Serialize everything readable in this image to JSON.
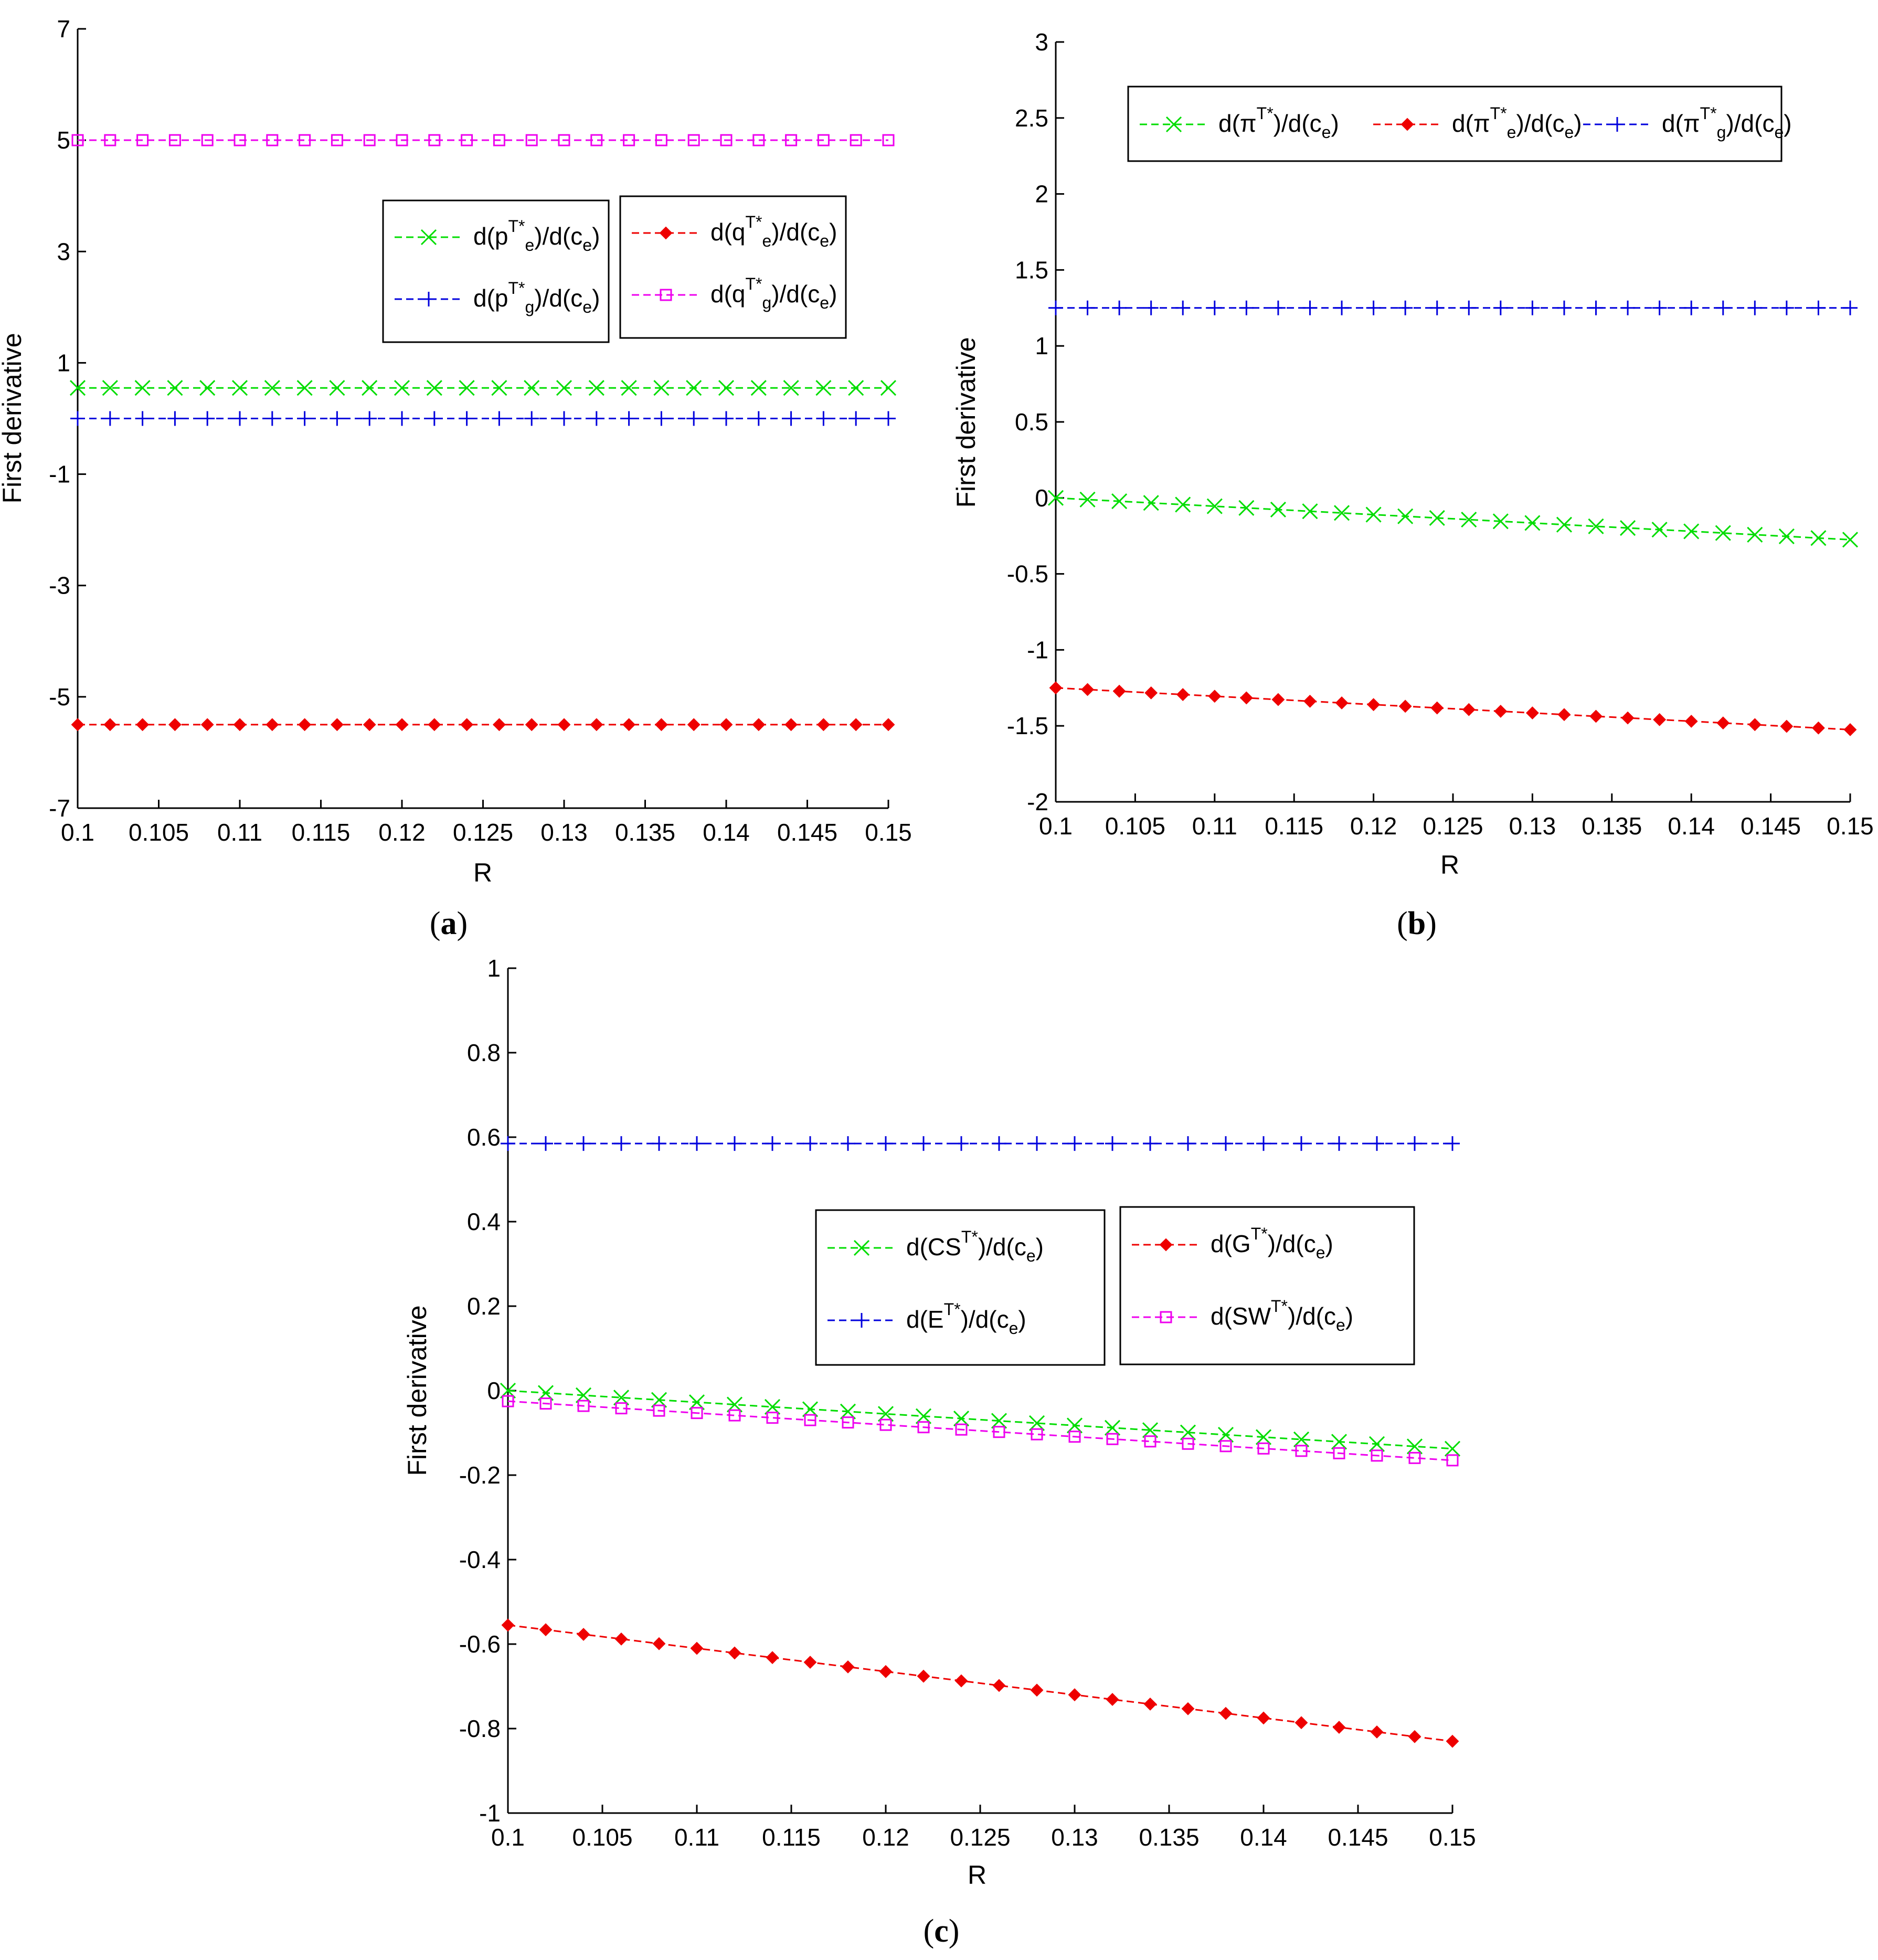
{
  "chart_data": [
    {
      "id": "a",
      "type": "line",
      "caption": "a",
      "xlabel": "R",
      "ylabel": "First derivative",
      "xlim": [
        0.1,
        0.15
      ],
      "ylim": [
        -7,
        7
      ],
      "xticks": [
        0.1,
        0.105,
        0.11,
        0.115,
        0.12,
        0.125,
        0.13,
        0.135,
        0.14,
        0.145,
        0.15
      ],
      "xtick_labels": [
        "0.1",
        "0.105",
        "0.11",
        "0.115",
        "0.12",
        "0.125",
        "0.13",
        "0.135",
        "0.14",
        "0.145",
        "0.15"
      ],
      "yticks": [
        -7,
        -5,
        -3,
        -1,
        1,
        3,
        5,
        7
      ],
      "ytick_labels": [
        "-7",
        "-5",
        "-3",
        "-1",
        "1",
        "3",
        "5",
        "7"
      ],
      "x": [
        0.1,
        0.102,
        0.104,
        0.106,
        0.108,
        0.11,
        0.112,
        0.114,
        0.116,
        0.118,
        0.12,
        0.122,
        0.124,
        0.126,
        0.128,
        0.13,
        0.132,
        0.134,
        0.136,
        0.138,
        0.14,
        0.142,
        0.144,
        0.146,
        0.148,
        0.15
      ],
      "series": [
        {
          "key": "pe",
          "color": "#00dd00",
          "marker": "x",
          "legend": {
            "pre": "d(p",
            "sub": "e",
            "sup": "T*",
            "post": ")/d(c",
            "sub2": "e",
            "end": ")"
          },
          "values": [
            0.55,
            0.55,
            0.55,
            0.55,
            0.55,
            0.55,
            0.55,
            0.55,
            0.55,
            0.55,
            0.55,
            0.55,
            0.55,
            0.55,
            0.55,
            0.55,
            0.55,
            0.55,
            0.55,
            0.55,
            0.55,
            0.55,
            0.55,
            0.55,
            0.55,
            0.55
          ]
        },
        {
          "key": "pg",
          "color": "#0000dd",
          "marker": "plus",
          "legend": {
            "pre": "d(p",
            "sub": "g",
            "sup": "T*",
            "post": ")/d(c",
            "sub2": "e",
            "end": ")"
          },
          "values": [
            0.0,
            0.0,
            0.0,
            0.0,
            0.0,
            0.0,
            0.0,
            0.0,
            0.0,
            0.0,
            0.0,
            0.0,
            0.0,
            0.0,
            0.0,
            0.0,
            0.0,
            0.0,
            0.0,
            0.0,
            0.0,
            0.0,
            0.0,
            0.0,
            0.0,
            0.0
          ]
        },
        {
          "key": "qe",
          "color": "#ee0000",
          "marker": "diamond",
          "legend": {
            "pre": "d(q",
            "sub": "e",
            "sup": "T*",
            "post": ")/d(c",
            "sub2": "e",
            "end": ")"
          },
          "values": [
            -5.5,
            -5.5,
            -5.5,
            -5.5,
            -5.5,
            -5.5,
            -5.5,
            -5.5,
            -5.5,
            -5.5,
            -5.5,
            -5.5,
            -5.5,
            -5.5,
            -5.5,
            -5.5,
            -5.5,
            -5.5,
            -5.5,
            -5.5,
            -5.5,
            -5.5,
            -5.5,
            -5.5,
            -5.5,
            -5.5
          ]
        },
        {
          "key": "qg",
          "color": "#ee00ee",
          "marker": "square",
          "legend": {
            "pre": "d(q",
            "sub": "g",
            "sup": "T*",
            "post": ")/d(c",
            "sub2": "e",
            "end": ")"
          },
          "values": [
            5.0,
            5.0,
            5.0,
            5.0,
            5.0,
            5.0,
            5.0,
            5.0,
            5.0,
            5.0,
            5.0,
            5.0,
            5.0,
            5.0,
            5.0,
            5.0,
            5.0,
            5.0,
            5.0,
            5.0,
            5.0,
            5.0,
            5.0,
            5.0,
            5.0,
            5.0
          ]
        }
      ],
      "legends": [
        {
          "placement": "upper-center",
          "entries": [
            "pe",
            "pg"
          ]
        },
        {
          "placement": "upper-right",
          "entries": [
            "qe",
            "qg"
          ]
        }
      ]
    },
    {
      "id": "b",
      "type": "line",
      "caption": "b",
      "xlabel": "R",
      "ylabel": "First derivative",
      "xlim": [
        0.1,
        0.15
      ],
      "ylim": [
        -2,
        3
      ],
      "xticks": [
        0.1,
        0.105,
        0.11,
        0.115,
        0.12,
        0.125,
        0.13,
        0.135,
        0.14,
        0.145,
        0.15
      ],
      "xtick_labels": [
        "0.1",
        "0.105",
        "0.11",
        "0.115",
        "0.12",
        "0.125",
        "0.13",
        "0.135",
        "0.14",
        "0.145",
        "0.15"
      ],
      "yticks": [
        -2,
        -1.5,
        -1,
        -0.5,
        0,
        0.5,
        1,
        1.5,
        2,
        2.5,
        3
      ],
      "ytick_labels": [
        "-2",
        "-1.5",
        "-1",
        "-0.5",
        "0",
        "0.5",
        "1",
        "1.5",
        "2",
        "2.5",
        "3"
      ],
      "x": [
        0.1,
        0.102,
        0.104,
        0.106,
        0.108,
        0.11,
        0.112,
        0.114,
        0.116,
        0.118,
        0.12,
        0.122,
        0.124,
        0.126,
        0.128,
        0.13,
        0.132,
        0.134,
        0.136,
        0.138,
        0.14,
        0.142,
        0.144,
        0.146,
        0.148,
        0.15
      ],
      "series": [
        {
          "key": "pi",
          "color": "#00dd00",
          "marker": "x",
          "legend": {
            "pre": "d(π",
            "sub": "",
            "sup": "T*",
            "post": ")/d(c",
            "sub2": "e",
            "end": ")"
          },
          "values": [
            0.0,
            -0.011,
            -0.022,
            -0.033,
            -0.044,
            -0.055,
            -0.066,
            -0.077,
            -0.088,
            -0.099,
            -0.11,
            -0.121,
            -0.132,
            -0.143,
            -0.154,
            -0.165,
            -0.176,
            -0.187,
            -0.198,
            -0.209,
            -0.22,
            -0.231,
            -0.242,
            -0.253,
            -0.264,
            -0.275
          ]
        },
        {
          "key": "pie",
          "color": "#ee0000",
          "marker": "diamond",
          "legend": {
            "pre": "d(π",
            "sub": "e",
            "sup": "T*",
            "post": ")/d(c",
            "sub2": "e",
            "end": ")"
          },
          "values": [
            -1.25,
            -1.261,
            -1.272,
            -1.283,
            -1.294,
            -1.305,
            -1.316,
            -1.327,
            -1.338,
            -1.349,
            -1.36,
            -1.371,
            -1.382,
            -1.393,
            -1.404,
            -1.415,
            -1.426,
            -1.437,
            -1.448,
            -1.459,
            -1.47,
            -1.481,
            -1.492,
            -1.503,
            -1.514,
            -1.525
          ]
        },
        {
          "key": "pig",
          "color": "#0000dd",
          "marker": "plus",
          "legend": {
            "pre": "d(π",
            "sub": "g",
            "sup": "T*",
            "post": ")/d(c",
            "sub2": "e",
            "end": ")"
          },
          "values": [
            1.25,
            1.25,
            1.25,
            1.25,
            1.25,
            1.25,
            1.25,
            1.25,
            1.25,
            1.25,
            1.25,
            1.25,
            1.25,
            1.25,
            1.25,
            1.25,
            1.25,
            1.25,
            1.25,
            1.25,
            1.25,
            1.25,
            1.25,
            1.25,
            1.25,
            1.25
          ]
        }
      ],
      "legends": [
        {
          "placement": "top",
          "entries": [
            "pi",
            "pie",
            "pig"
          ]
        }
      ]
    },
    {
      "id": "c",
      "type": "line",
      "caption": "c",
      "xlabel": "R",
      "ylabel": "First derivative",
      "xlim": [
        0.1,
        0.15
      ],
      "ylim": [
        -1,
        1
      ],
      "xticks": [
        0.1,
        0.105,
        0.11,
        0.115,
        0.12,
        0.125,
        0.13,
        0.135,
        0.14,
        0.145,
        0.15
      ],
      "xtick_labels": [
        "0.1",
        "0.105",
        "0.11",
        "0.115",
        "0.12",
        "0.125",
        "0.13",
        "0.135",
        "0.14",
        "0.145",
        "0.15"
      ],
      "yticks": [
        -1,
        -0.8,
        -0.6,
        -0.4,
        -0.2,
        0,
        0.2,
        0.4,
        0.6,
        0.8,
        1
      ],
      "ytick_labels": [
        "-1",
        "-0.8",
        "-0.6",
        "-0.4",
        "-0.2",
        "0",
        "0.2",
        "0.4",
        "0.6",
        "0.8",
        "1"
      ],
      "x": [
        0.1,
        0.102,
        0.104,
        0.106,
        0.108,
        0.11,
        0.112,
        0.114,
        0.116,
        0.118,
        0.12,
        0.122,
        0.124,
        0.126,
        0.128,
        0.13,
        0.132,
        0.134,
        0.136,
        0.138,
        0.14,
        0.142,
        0.144,
        0.146,
        0.148,
        0.15
      ],
      "series": [
        {
          "key": "cs",
          "color": "#00dd00",
          "marker": "x",
          "legend": {
            "pre": "d(CS",
            "sub": "",
            "sup": "T*",
            "post": ")/d(c",
            "sub2": "e",
            "end": ")"
          },
          "values": [
            0.0,
            -0.0055,
            -0.011,
            -0.0165,
            -0.022,
            -0.0275,
            -0.033,
            -0.0385,
            -0.044,
            -0.0495,
            -0.055,
            -0.0605,
            -0.066,
            -0.0715,
            -0.077,
            -0.0825,
            -0.088,
            -0.0935,
            -0.099,
            -0.1045,
            -0.11,
            -0.1155,
            -0.121,
            -0.1265,
            -0.132,
            -0.1375
          ]
        },
        {
          "key": "e",
          "color": "#0000dd",
          "marker": "plus",
          "legend": {
            "pre": "d(E",
            "sub": "",
            "sup": "T*",
            "post": ")/d(c",
            "sub2": "e",
            "end": ")"
          },
          "values": [
            0.585,
            0.585,
            0.585,
            0.585,
            0.585,
            0.585,
            0.585,
            0.585,
            0.585,
            0.585,
            0.585,
            0.585,
            0.585,
            0.585,
            0.585,
            0.585,
            0.585,
            0.585,
            0.585,
            0.585,
            0.585,
            0.585,
            0.585,
            0.585,
            0.585,
            0.585
          ]
        },
        {
          "key": "g",
          "color": "#ee0000",
          "marker": "diamond",
          "legend": {
            "pre": "d(G",
            "sub": "",
            "sup": "T*",
            "post": ")/d(c",
            "sub2": "e",
            "end": ")"
          },
          "values": [
            -0.555,
            -0.566,
            -0.577,
            -0.588,
            -0.599,
            -0.61,
            -0.621,
            -0.632,
            -0.643,
            -0.654,
            -0.665,
            -0.676,
            -0.687,
            -0.698,
            -0.709,
            -0.72,
            -0.731,
            -0.742,
            -0.753,
            -0.764,
            -0.775,
            -0.786,
            -0.797,
            -0.808,
            -0.819,
            -0.83
          ]
        },
        {
          "key": "sw",
          "color": "#ee00ee",
          "marker": "square",
          "legend": {
            "pre": "d(SW",
            "sub": "",
            "sup": "T*",
            "post": ")/d(c",
            "sub2": "e",
            "end": ")"
          },
          "values": [
            -0.025,
            -0.0306,
            -0.0362,
            -0.0418,
            -0.0474,
            -0.053,
            -0.0586,
            -0.0642,
            -0.0698,
            -0.0754,
            -0.081,
            -0.0866,
            -0.0922,
            -0.0978,
            -0.1034,
            -0.109,
            -0.1146,
            -0.1202,
            -0.1258,
            -0.1314,
            -0.137,
            -0.1426,
            -0.1482,
            -0.1538,
            -0.1594,
            -0.165
          ]
        }
      ],
      "legends": [
        {
          "placement": "center-left",
          "entries": [
            "cs",
            "e"
          ]
        },
        {
          "placement": "center-right",
          "entries": [
            "g",
            "sw"
          ]
        }
      ]
    }
  ]
}
